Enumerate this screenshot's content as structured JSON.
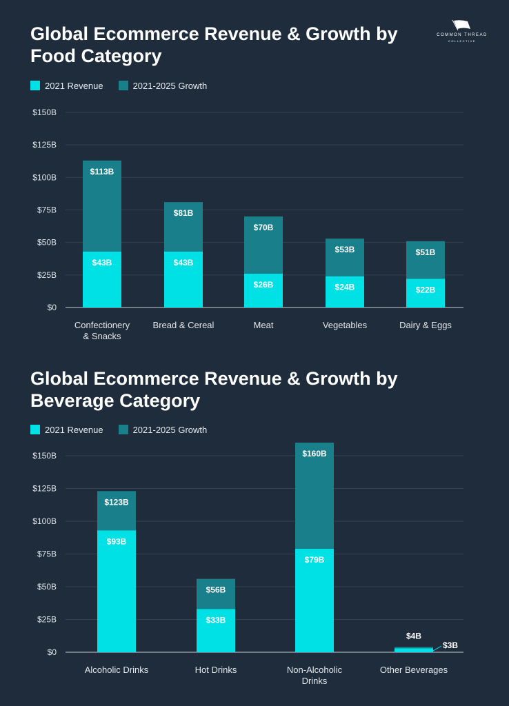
{
  "logo": {
    "line1": "COMMON THREAD",
    "line2": "COLLECTIVE"
  },
  "colors": {
    "revenue": "#00e1e6",
    "growth": "#197f8b",
    "background": "#1f2c3b",
    "grid": "#34424f",
    "axis": "#8d98a2"
  },
  "chart_data": [
    {
      "type": "bar",
      "stacked": true,
      "title": "Global Ecommerce Revenue & Growth by Food Category",
      "legend": [
        "2021 Revenue",
        "2021-2025 Growth"
      ],
      "legend_position": "top-left",
      "categories": [
        [
          "Confectionery",
          "& Snacks"
        ],
        [
          "Bread & Cereal"
        ],
        [
          "Meat"
        ],
        [
          "Vegetables"
        ],
        [
          "Dairy & Eggs"
        ]
      ],
      "revenue": [
        43,
        43,
        26,
        24,
        22
      ],
      "total": [
        113,
        81,
        70,
        53,
        51
      ],
      "revenue_labels": [
        "$43B",
        "$43B",
        "$26B",
        "$24B",
        "$22B"
      ],
      "total_labels": [
        "$113B",
        "$81B",
        "$70B",
        "$53B",
        "$51B"
      ],
      "yticks": [
        "$0",
        "$25B",
        "$50B",
        "$75B",
        "$100B",
        "$125B",
        "$150B"
      ],
      "ylim": [
        0,
        150
      ],
      "grid": true
    },
    {
      "type": "bar",
      "stacked": true,
      "title": "Global Ecommerce Revenue & Growth by Beverage Category",
      "legend": [
        "2021 Revenue",
        "2021-2025 Growth"
      ],
      "legend_position": "top-left",
      "categories": [
        [
          "Alcoholic Drinks"
        ],
        [
          "Hot Drinks"
        ],
        [
          "Non-Alcoholic",
          "Drinks"
        ],
        [
          "Other Beverages"
        ]
      ],
      "revenue": [
        93,
        33,
        79,
        3
      ],
      "total": [
        123,
        56,
        160,
        4
      ],
      "revenue_labels": [
        "$93B",
        "$33B",
        "$79B",
        "$3B"
      ],
      "total_labels": [
        "$123B",
        "$56B",
        "$160B",
        "$4B"
      ],
      "yticks": [
        "$0",
        "$25B",
        "$50B",
        "$75B",
        "$100B",
        "$125B",
        "$150B"
      ],
      "ylim": [
        0,
        150
      ],
      "grid": true
    }
  ]
}
